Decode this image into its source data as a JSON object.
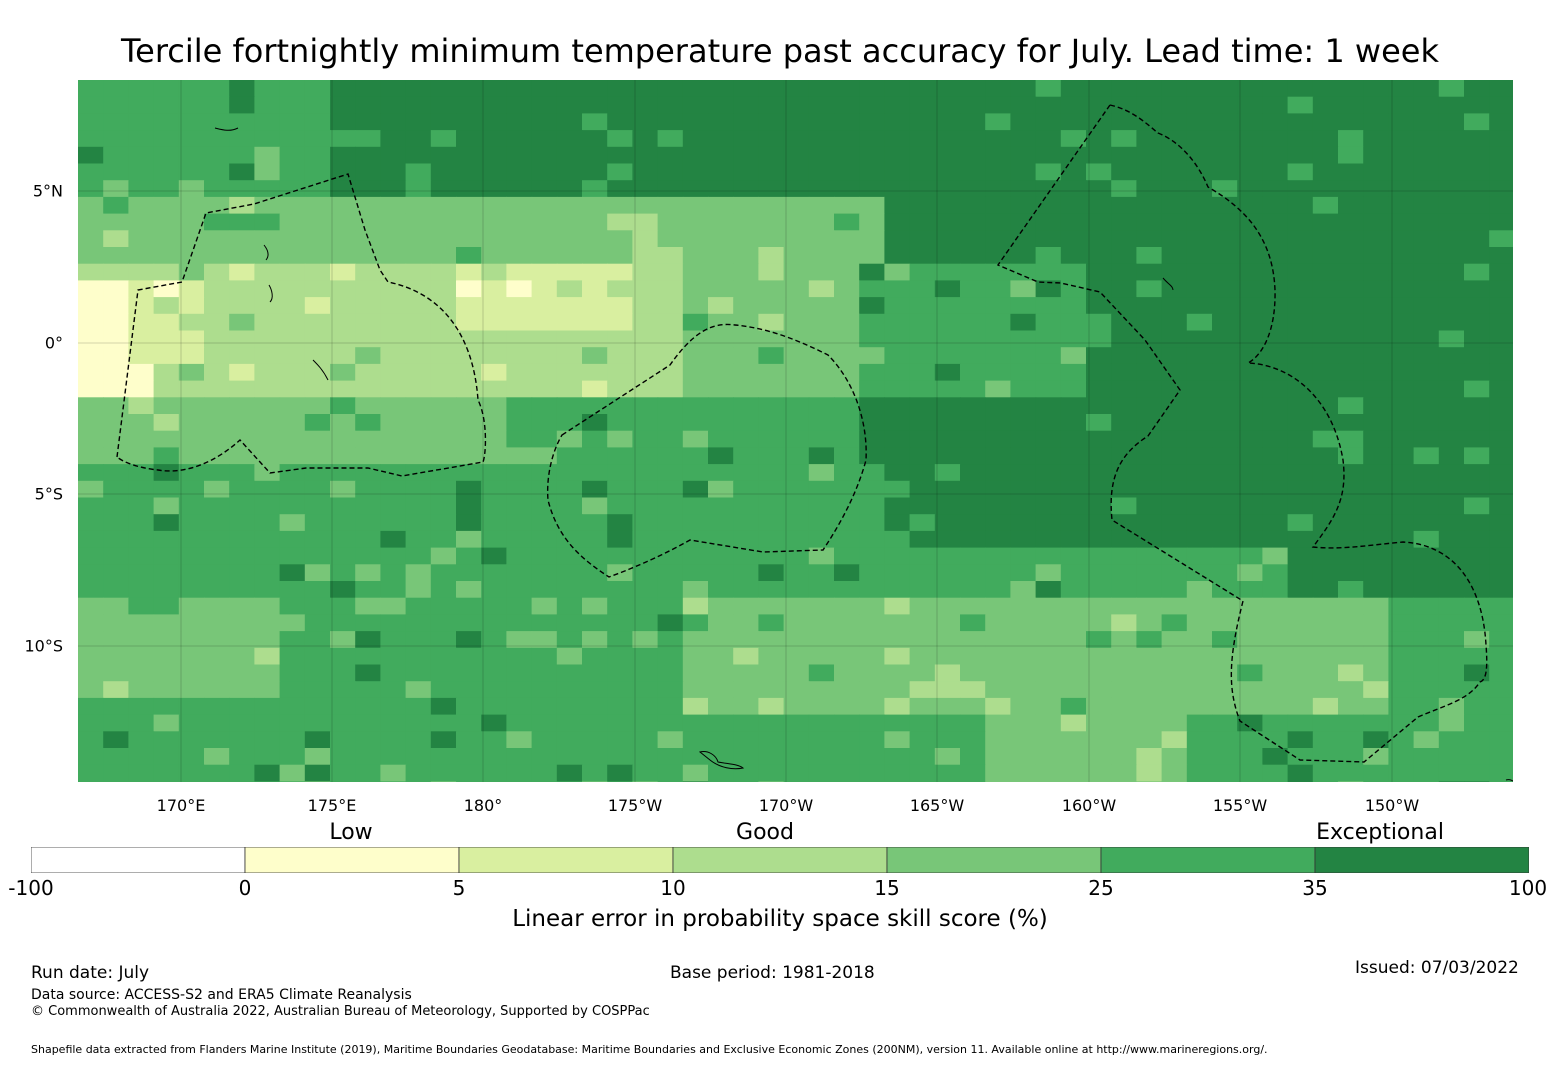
{
  "title": "Tercile fortnightly minimum temperature past accuracy for July. Lead time: 1 week",
  "map": {
    "lon_labels": [
      "170°E",
      "175°E",
      "180°",
      "175°W",
      "170°W",
      "165°W",
      "160°W",
      "155°W",
      "150°W"
    ],
    "lat_labels": [
      "5°N",
      "0°",
      "5°S",
      "10°S"
    ]
  },
  "legend": {
    "categories": [
      "Low",
      "Good",
      "Exceptional"
    ],
    "ticks": [
      "-100",
      "0",
      "5",
      "10",
      "15",
      "25",
      "35",
      "100"
    ],
    "colors": [
      "#ffffff",
      "#fefecb",
      "#d9efa0",
      "#addd8e",
      "#78c678",
      "#41ab5d",
      "#238443"
    ],
    "label": "Linear error in probability space skill score (%)"
  },
  "footer": {
    "run_date": "Run date: July",
    "base_period": "Base period: 1981-2018",
    "issued": "Issued: 07/03/2022",
    "data_source": "Data source: ACCESS-S2 and ERA5 Climate Reanalysis",
    "copyright": "© Commonwealth of Australia 2022, Australian Bureau of Meteorology, Supported by COSPPac",
    "shapefile": "Shapefile data extracted from Flanders Marine Institute (2019), Maritime Boundaries Geodatabase: Maritime Boundaries and Exclusive Economic Zones (200NM), version 11. Available online at http://www.marineregions.org/."
  }
}
